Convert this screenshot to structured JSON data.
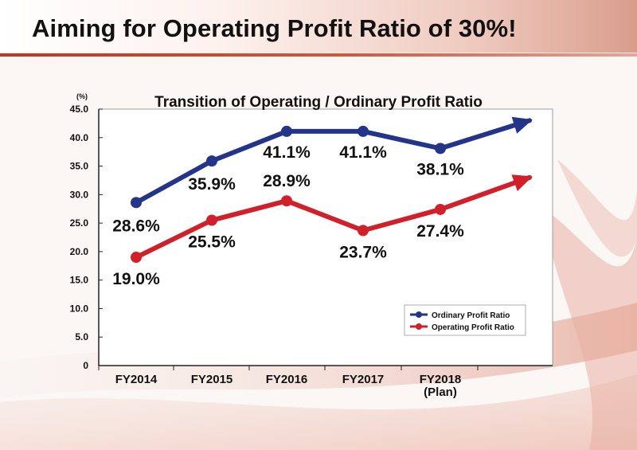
{
  "slide": {
    "title": "Aiming for Operating Profit Ratio of 30%!"
  },
  "colors": {
    "ordinary": "#243589",
    "operating": "#d0202a",
    "accent_rule": "#c23520"
  },
  "chart_data": {
    "type": "line",
    "title": "Transition of Operating / Ordinary Profit Ratio",
    "unit_label": "(%)",
    "xlabel": "",
    "ylabel": "",
    "ylim": [
      0,
      45
    ],
    "yticks": [
      "0",
      "5.0",
      "10.0",
      "15.0",
      "20.0",
      "25.0",
      "30.0",
      "35.0",
      "40.0",
      "45.0"
    ],
    "ytick_values": [
      0,
      5,
      10,
      15,
      20,
      25,
      30,
      35,
      40,
      45
    ],
    "categories": [
      "FY2014",
      "FY2015",
      "FY2016",
      "FY2017",
      "FY2018\n(Plan)"
    ],
    "category_lines": [
      [
        "FY2014"
      ],
      [
        "FY2015"
      ],
      [
        "FY2016"
      ],
      [
        "FY2017"
      ],
      [
        "FY2018",
        "(Plan)"
      ]
    ],
    "series": [
      {
        "name": "Ordinary Profit Ratio",
        "key": "ordinary",
        "values": [
          28.6,
          35.9,
          41.1,
          41.1,
          38.1
        ],
        "labels": [
          "28.6%",
          "35.9%",
          "41.1%",
          "41.1%",
          "38.1%"
        ],
        "arrow_to": 43.0,
        "label_position": "mixed"
      },
      {
        "name": "Operating Profit Ratio",
        "key": "operating",
        "values": [
          19.0,
          25.5,
          28.9,
          23.7,
          27.4
        ],
        "labels": [
          "19.0%",
          "25.5%",
          "28.9%",
          "23.7%",
          "27.4%"
        ],
        "arrow_to": 33.0,
        "label_position": "mixed"
      }
    ],
    "legend_position": "bottom-right",
    "grid": false
  }
}
